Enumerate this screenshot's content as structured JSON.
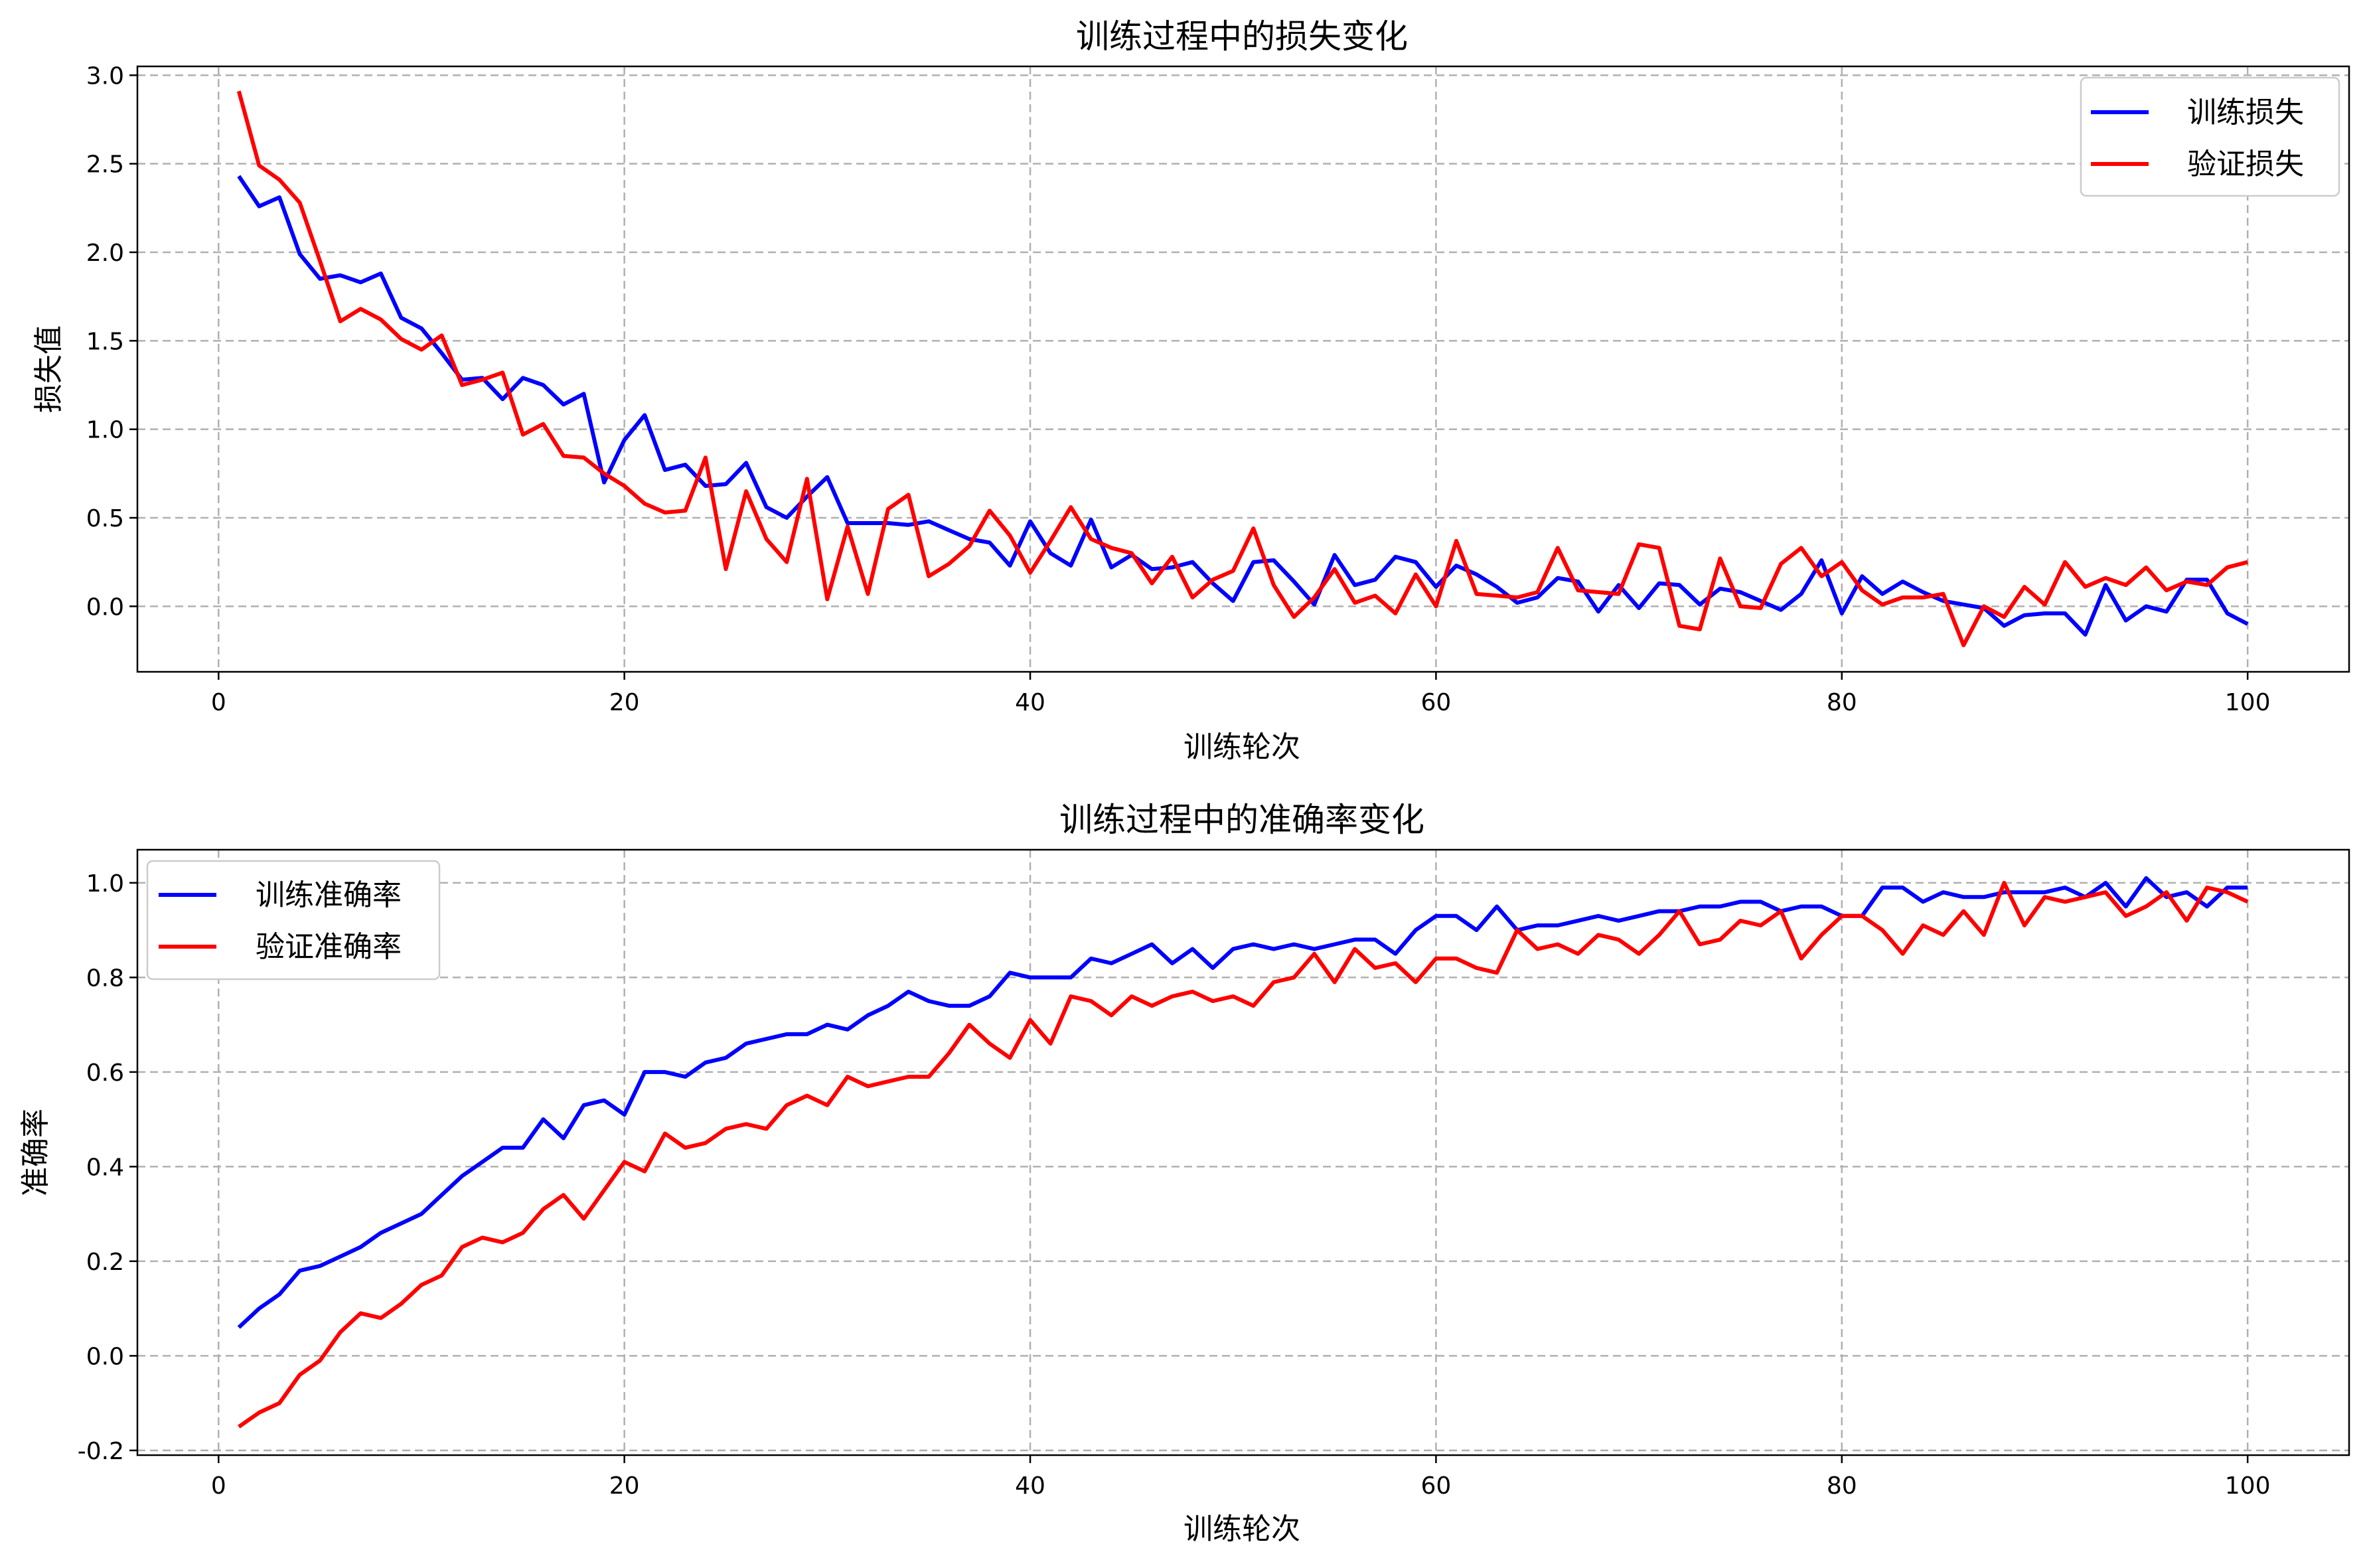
{
  "chart_data": [
    {
      "type": "line",
      "title": "训练过程中的损失变化",
      "xlabel": "训练轮次",
      "ylabel": "损失值",
      "xlim": [
        -4,
        105
      ],
      "ylim": [
        -0.37,
        3.05
      ],
      "xticks": [
        0,
        20,
        40,
        60,
        80,
        100
      ],
      "xtick_labels": [
        "0",
        "20",
        "40",
        "60",
        "80",
        "100"
      ],
      "yticks": [
        0.0,
        0.5,
        1.0,
        1.5,
        2.0,
        2.5,
        3.0
      ],
      "ytick_labels": [
        "0.0",
        "0.5",
        "1.0",
        "1.5",
        "2.0",
        "2.5",
        "3.0"
      ],
      "grid": true,
      "legend_position": "upper right",
      "x_start": 1,
      "series": [
        {
          "name": "训练损失",
          "color": "#0000ff",
          "values": [
            2.43,
            2.26,
            2.31,
            1.99,
            1.85,
            1.87,
            1.83,
            1.88,
            1.63,
            1.57,
            1.43,
            1.28,
            1.29,
            1.17,
            1.29,
            1.25,
            1.14,
            1.2,
            0.7,
            0.94,
            1.08,
            0.77,
            0.8,
            0.68,
            0.69,
            0.81,
            0.56,
            0.5,
            0.62,
            0.73,
            0.47,
            0.47,
            0.47,
            0.46,
            0.48,
            0.43,
            0.38,
            0.36,
            0.23,
            0.48,
            0.3,
            0.23,
            0.49,
            0.22,
            0.29,
            0.21,
            0.22,
            0.25,
            0.13,
            0.03,
            0.25,
            0.26,
            0.14,
            0.01,
            0.29,
            0.12,
            0.15,
            0.28,
            0.25,
            0.11,
            0.23,
            0.18,
            0.11,
            0.02,
            0.05,
            0.16,
            0.14,
            -0.03,
            0.12,
            -0.01,
            0.13,
            0.12,
            0.01,
            0.1,
            0.08,
            0.03,
            -0.02,
            0.07,
            0.26,
            -0.04,
            0.17,
            0.07,
            0.14,
            0.08,
            0.03,
            0.01,
            -0.01,
            -0.11,
            -0.05,
            -0.04,
            -0.04,
            -0.16,
            0.12,
            -0.08,
            0.0,
            -0.03,
            0.15,
            0.15,
            -0.04,
            -0.1
          ]
        },
        {
          "name": "验证损失",
          "color": "#ff0000",
          "values": [
            2.91,
            2.49,
            2.41,
            2.28,
            1.95,
            1.61,
            1.68,
            1.62,
            1.51,
            1.45,
            1.53,
            1.25,
            1.28,
            1.32,
            0.97,
            1.03,
            0.85,
            0.84,
            0.75,
            0.68,
            0.58,
            0.53,
            0.54,
            0.84,
            0.21,
            0.65,
            0.38,
            0.25,
            0.72,
            0.04,
            0.45,
            0.07,
            0.55,
            0.63,
            0.17,
            0.24,
            0.34,
            0.54,
            0.4,
            0.19,
            0.37,
            0.56,
            0.38,
            0.33,
            0.3,
            0.13,
            0.28,
            0.05,
            0.15,
            0.2,
            0.44,
            0.12,
            -0.06,
            0.05,
            0.21,
            0.02,
            0.06,
            -0.04,
            0.18,
            0.0,
            0.37,
            0.07,
            0.06,
            0.05,
            0.08,
            0.33,
            0.09,
            0.08,
            0.07,
            0.35,
            0.33,
            -0.11,
            -0.13,
            0.27,
            0.0,
            -0.01,
            0.24,
            0.33,
            0.17,
            0.25,
            0.09,
            0.01,
            0.05,
            0.05,
            0.07,
            -0.22,
            0.0,
            -0.06,
            0.11,
            0.01,
            0.25,
            0.11,
            0.16,
            0.12,
            0.22,
            0.09,
            0.14,
            0.12,
            0.22,
            0.25
          ]
        }
      ]
    },
    {
      "type": "line",
      "title": "训练过程中的准确率变化",
      "xlabel": "训练轮次",
      "ylabel": "准确率",
      "xlim": [
        -4,
        105
      ],
      "ylim": [
        -0.21,
        1.07
      ],
      "xticks": [
        0,
        20,
        40,
        60,
        80,
        100
      ],
      "xtick_labels": [
        "0",
        "20",
        "40",
        "60",
        "80",
        "100"
      ],
      "yticks": [
        -0.2,
        0.0,
        0.2,
        0.4,
        0.6,
        0.8,
        1.0
      ],
      "ytick_labels": [
        "-0.2",
        "0.0",
        "0.2",
        "0.4",
        "0.6",
        "0.8",
        "1.0"
      ],
      "grid": true,
      "legend_position": "upper left",
      "x_start": 1,
      "series": [
        {
          "name": "训练准确率",
          "color": "#0000ff",
          "values": [
            0.06,
            0.1,
            0.13,
            0.18,
            0.19,
            0.21,
            0.23,
            0.26,
            0.28,
            0.3,
            0.34,
            0.38,
            0.41,
            0.44,
            0.44,
            0.5,
            0.46,
            0.53,
            0.54,
            0.51,
            0.6,
            0.6,
            0.59,
            0.62,
            0.63,
            0.66,
            0.67,
            0.68,
            0.68,
            0.7,
            0.69,
            0.72,
            0.74,
            0.77,
            0.75,
            0.74,
            0.74,
            0.76,
            0.81,
            0.8,
            0.8,
            0.8,
            0.84,
            0.83,
            0.85,
            0.87,
            0.83,
            0.86,
            0.82,
            0.86,
            0.87,
            0.86,
            0.87,
            0.86,
            0.87,
            0.88,
            0.88,
            0.85,
            0.9,
            0.93,
            0.93,
            0.9,
            0.95,
            0.9,
            0.91,
            0.91,
            0.92,
            0.93,
            0.92,
            0.93,
            0.94,
            0.94,
            0.95,
            0.95,
            0.96,
            0.96,
            0.94,
            0.95,
            0.95,
            0.93,
            0.93,
            0.99,
            0.99,
            0.96,
            0.98,
            0.97,
            0.97,
            0.98,
            0.98,
            0.98,
            0.99,
            0.97,
            1.0,
            0.95,
            1.01,
            0.97,
            0.98,
            0.95,
            0.99,
            0.99
          ]
        },
        {
          "name": "验证准确率",
          "color": "#ff0000",
          "values": [
            -0.15,
            -0.12,
            -0.1,
            -0.04,
            -0.01,
            0.05,
            0.09,
            0.08,
            0.11,
            0.15,
            0.17,
            0.23,
            0.25,
            0.24,
            0.26,
            0.31,
            0.34,
            0.29,
            0.35,
            0.41,
            0.39,
            0.47,
            0.44,
            0.45,
            0.48,
            0.49,
            0.48,
            0.53,
            0.55,
            0.53,
            0.59,
            0.57,
            0.58,
            0.59,
            0.59,
            0.64,
            0.7,
            0.66,
            0.63,
            0.71,
            0.66,
            0.76,
            0.75,
            0.72,
            0.76,
            0.74,
            0.76,
            0.77,
            0.75,
            0.76,
            0.74,
            0.79,
            0.8,
            0.85,
            0.79,
            0.86,
            0.82,
            0.83,
            0.79,
            0.84,
            0.84,
            0.82,
            0.81,
            0.9,
            0.86,
            0.87,
            0.85,
            0.89,
            0.88,
            0.85,
            0.89,
            0.94,
            0.87,
            0.88,
            0.92,
            0.91,
            0.94,
            0.84,
            0.89,
            0.93,
            0.93,
            0.9,
            0.85,
            0.91,
            0.89,
            0.94,
            0.89,
            1.0,
            0.91,
            0.97,
            0.96,
            0.97,
            0.98,
            0.93,
            0.95,
            0.98,
            0.92,
            0.99,
            0.98,
            0.96
          ]
        }
      ]
    }
  ]
}
